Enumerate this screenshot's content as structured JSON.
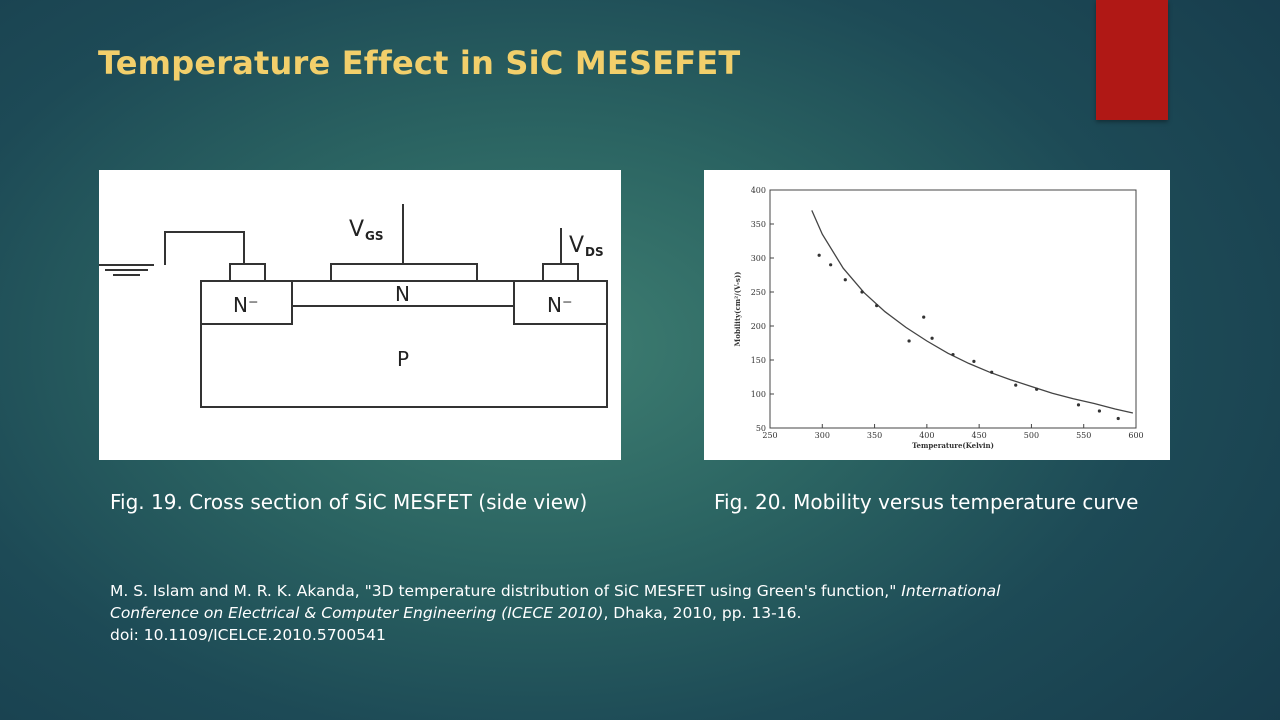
{
  "slide": {
    "title": "Temperature Effect in SiC MESEFET",
    "accent_color": "#b01815",
    "title_color": "#f2cf6b"
  },
  "figures": {
    "left": {
      "caption": "Fig. 19. Cross section of SiC MESFET (side view)",
      "labels": {
        "vgs_main": "V",
        "vgs_sub": "GS",
        "vds_main": "V",
        "vds_sub": "DS",
        "n_minus_left": "N⁻",
        "n_center": "N",
        "n_minus_right": "N⁻",
        "p_region": "P"
      }
    },
    "right": {
      "caption": "Fig. 20. Mobility versus temperature curve"
    }
  },
  "chart_data": {
    "type": "scatter",
    "xlabel": "Temperature(Kelvin)",
    "ylabel": "Mobility(cm²/(V-s))",
    "xlim": [
      250,
      600
    ],
    "ylim": [
      50,
      400
    ],
    "x_ticks": [
      250,
      300,
      350,
      400,
      450,
      500,
      550,
      600
    ],
    "y_ticks": [
      50,
      100,
      150,
      200,
      250,
      300,
      350,
      400
    ],
    "series": [
      {
        "kind": "line",
        "x": [
          290,
          300,
          320,
          340,
          360,
          380,
          400,
          420,
          440,
          460,
          480,
          500,
          520,
          540,
          560,
          580,
          597
        ],
        "y": [
          370,
          335,
          285,
          249,
          221,
          198,
          178,
          160,
          145,
          132,
          121,
          111,
          101,
          93,
          86,
          78,
          72
        ]
      },
      {
        "kind": "scatter",
        "x": [
          297,
          308,
          322,
          338,
          352,
          383,
          397,
          405,
          425,
          445,
          462,
          485,
          505,
          545,
          565,
          583
        ],
        "y": [
          304,
          290,
          268,
          250,
          230,
          178,
          213,
          182,
          158,
          148,
          132,
          113,
          107,
          84,
          75,
          64
        ]
      }
    ]
  },
  "citation": {
    "line1_plain": "M. S. Islam and M. R. K. Akanda, \"3D temperature distribution of SiC MESFET using Green's function,\" ",
    "line1_italic": "International",
    "line2_italic": "Conference on Electrical & Computer Engineering (ICECE 2010)",
    "line2_plain": ", Dhaka, 2010, pp. 13-16.",
    "line3": "doi: 10.1109/ICELCE.2010.5700541"
  }
}
